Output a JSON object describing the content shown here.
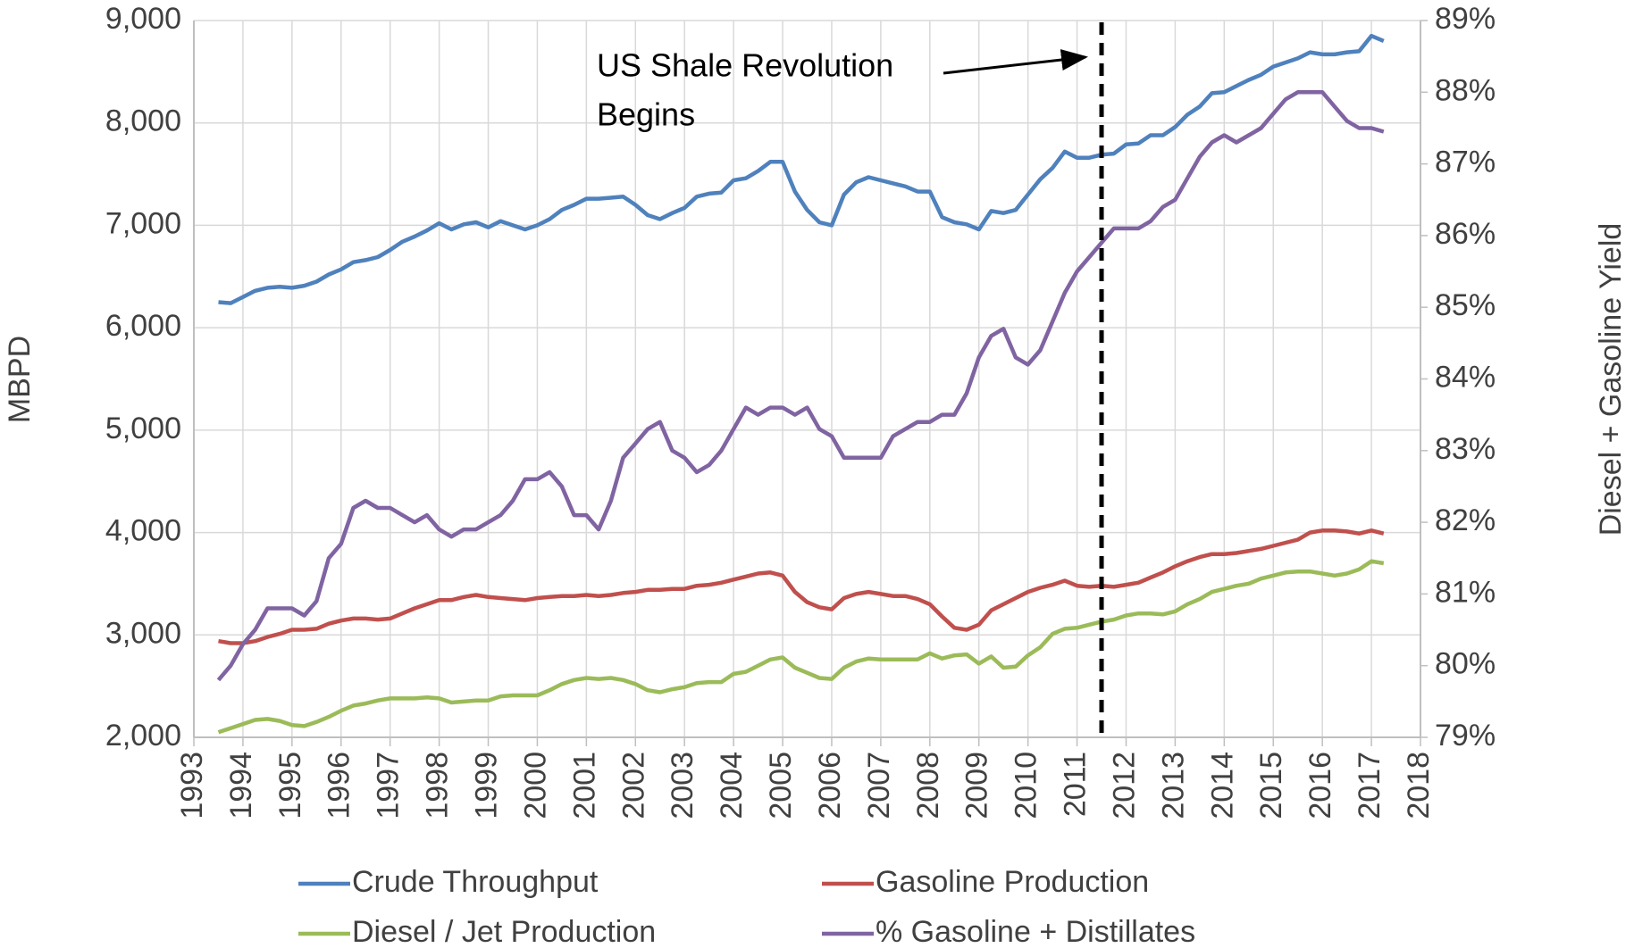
{
  "chart_data": {
    "type": "line",
    "y_label": "MBPD",
    "y2_label": "Diesel + Gasoline Yield",
    "annotation": {
      "lines": [
        "US Shale Revolution",
        "Begins"
      ],
      "x": 2011.5
    },
    "grid": true,
    "legend": "bottom",
    "xlim": [
      1993,
      2018
    ],
    "xticks": [
      1993,
      1994,
      1995,
      1996,
      1997,
      1998,
      1999,
      2000,
      2001,
      2002,
      2003,
      2004,
      2005,
      2006,
      2007,
      2008,
      2009,
      2010,
      2011,
      2012,
      2013,
      2014,
      2015,
      2016,
      2017,
      2018
    ],
    "ylim": [
      2000,
      9000
    ],
    "yticks": [
      {
        "value": 2000,
        "label": "2,000"
      },
      {
        "value": 3000,
        "label": "3,000"
      },
      {
        "value": 4000,
        "label": "4,000"
      },
      {
        "value": 5000,
        "label": "5,000"
      },
      {
        "value": 6000,
        "label": "6,000"
      },
      {
        "value": 7000,
        "label": "7,000"
      },
      {
        "value": 8000,
        "label": "8,000"
      },
      {
        "value": 9000,
        "label": "9,000"
      }
    ],
    "y2lim": [
      79,
      89
    ],
    "y2ticks": [
      {
        "value": 79,
        "label": "79%"
      },
      {
        "value": 80,
        "label": "80%"
      },
      {
        "value": 81,
        "label": "81%"
      },
      {
        "value": 82,
        "label": "82%"
      },
      {
        "value": 83,
        "label": "83%"
      },
      {
        "value": 84,
        "label": "84%"
      },
      {
        "value": 85,
        "label": "85%"
      },
      {
        "value": 86,
        "label": "86%"
      },
      {
        "value": 87,
        "label": "87%"
      },
      {
        "value": 88,
        "label": "88%"
      },
      {
        "value": 89,
        "label": "89%"
      }
    ],
    "x": [
      1993.5,
      1993.75,
      1994,
      1994.25,
      1994.5,
      1994.75,
      1995,
      1995.25,
      1995.5,
      1995.75,
      1996,
      1996.25,
      1996.5,
      1996.75,
      1997,
      1997.25,
      1997.5,
      1997.75,
      1998,
      1998.25,
      1998.5,
      1998.75,
      1999,
      1999.25,
      1999.5,
      1999.75,
      2000,
      2000.25,
      2000.5,
      2000.75,
      2001,
      2001.25,
      2001.5,
      2001.75,
      2002,
      2002.25,
      2002.5,
      2002.75,
      2003,
      2003.25,
      2003.5,
      2003.75,
      2004,
      2004.25,
      2004.5,
      2004.75,
      2005,
      2005.25,
      2005.5,
      2005.75,
      2006,
      2006.25,
      2006.5,
      2006.75,
      2007,
      2007.25,
      2007.5,
      2007.75,
      2008,
      2008.25,
      2008.5,
      2008.75,
      2009,
      2009.25,
      2009.5,
      2009.75,
      2010,
      2010.25,
      2010.5,
      2010.75,
      2011,
      2011.25,
      2011.5,
      2011.75,
      2012,
      2012.25,
      2012.5,
      2012.75,
      2013,
      2013.25,
      2013.5,
      2013.75,
      2014,
      2014.25,
      2014.5,
      2014.75,
      2015,
      2015.25,
      2015.5,
      2015.75,
      2016,
      2016.25,
      2016.5,
      2016.75,
      2017,
      2017.25
    ],
    "series": [
      {
        "name": "Crude Throughput",
        "color": "#4f81bd",
        "values": [
          6250,
          6240,
          6300,
          6360,
          6390,
          6400,
          6390,
          6410,
          6450,
          6520,
          6570,
          6640,
          6660,
          6690,
          6760,
          6840,
          6890,
          6950,
          7020,
          6960,
          7010,
          7030,
          6980,
          7040,
          7000,
          6960,
          7000,
          7060,
          7150,
          7200,
          7260,
          7260,
          7270,
          7280,
          7200,
          7100,
          7060,
          7120,
          7170,
          7280,
          7310,
          7320,
          7440,
          7460,
          7530,
          7620,
          7620,
          7330,
          7150,
          7030,
          7000,
          7300,
          7420,
          7470,
          7440,
          7410,
          7380,
          7330,
          7330,
          7080,
          7030,
          7010,
          6960,
          7140,
          7120,
          7150,
          7300,
          7450,
          7560,
          7720,
          7660,
          7660,
          7690,
          7700,
          7790,
          7800,
          7880,
          7880,
          7960,
          8080,
          8160,
          8290,
          8300,
          8360,
          8420,
          8470,
          8550,
          8590,
          8630,
          8690,
          8670,
          8670,
          8690,
          8700,
          8850,
          8800
        ]
      },
      {
        "name": "Gasoline Production",
        "color": "#c0504d",
        "values": [
          2940,
          2920,
          2920,
          2940,
          2980,
          3010,
          3050,
          3050,
          3060,
          3110,
          3140,
          3160,
          3160,
          3150,
          3160,
          3210,
          3260,
          3300,
          3340,
          3340,
          3370,
          3390,
          3370,
          3360,
          3350,
          3340,
          3360,
          3370,
          3380,
          3380,
          3390,
          3380,
          3390,
          3410,
          3420,
          3440,
          3440,
          3450,
          3450,
          3480,
          3490,
          3510,
          3540,
          3570,
          3600,
          3610,
          3580,
          3420,
          3320,
          3270,
          3250,
          3360,
          3400,
          3420,
          3400,
          3380,
          3380,
          3350,
          3300,
          3180,
          3070,
          3050,
          3100,
          3240,
          3300,
          3360,
          3420,
          3460,
          3490,
          3530,
          3480,
          3470,
          3480,
          3470,
          3490,
          3510,
          3560,
          3610,
          3670,
          3720,
          3760,
          3790,
          3790,
          3800,
          3820,
          3840,
          3870,
          3900,
          3930,
          4000,
          4020,
          4020,
          4010,
          3990,
          4020,
          3990
        ]
      },
      {
        "name": "Diesel / Jet Production",
        "color": "#9bbb59",
        "values": [
          2050,
          2090,
          2130,
          2170,
          2180,
          2160,
          2120,
          2110,
          2150,
          2200,
          2260,
          2310,
          2330,
          2360,
          2380,
          2380,
          2380,
          2390,
          2380,
          2340,
          2350,
          2360,
          2360,
          2400,
          2410,
          2410,
          2410,
          2460,
          2520,
          2560,
          2580,
          2570,
          2580,
          2560,
          2520,
          2460,
          2440,
          2470,
          2490,
          2530,
          2540,
          2540,
          2620,
          2640,
          2700,
          2760,
          2780,
          2680,
          2630,
          2580,
          2570,
          2680,
          2740,
          2770,
          2760,
          2760,
          2760,
          2760,
          2820,
          2770,
          2800,
          2810,
          2720,
          2790,
          2680,
          2690,
          2800,
          2880,
          3010,
          3060,
          3070,
          3100,
          3130,
          3150,
          3190,
          3210,
          3210,
          3200,
          3230,
          3300,
          3350,
          3420,
          3450,
          3480,
          3500,
          3550,
          3580,
          3610,
          3620,
          3620,
          3600,
          3580,
          3600,
          3640,
          3720,
          3700
        ]
      },
      {
        "name": "% Gasoline + Distillates",
        "color": "#8064a2",
        "axis": "y2",
        "values": [
          79.8,
          80.0,
          80.3,
          80.5,
          80.8,
          80.8,
          80.8,
          80.7,
          80.9,
          81.5,
          81.7,
          82.2,
          82.3,
          82.2,
          82.2,
          82.1,
          82.0,
          82.1,
          81.9,
          81.8,
          81.9,
          81.9,
          82.0,
          82.1,
          82.3,
          82.6,
          82.6,
          82.7,
          82.5,
          82.1,
          82.1,
          81.9,
          82.3,
          82.9,
          83.1,
          83.3,
          83.4,
          83.0,
          82.9,
          82.7,
          82.8,
          83.0,
          83.3,
          83.6,
          83.5,
          83.6,
          83.6,
          83.5,
          83.6,
          83.3,
          83.2,
          82.9,
          82.9,
          82.9,
          82.9,
          83.2,
          83.3,
          83.4,
          83.4,
          83.5,
          83.5,
          83.8,
          84.3,
          84.6,
          84.7,
          84.3,
          84.2,
          84.4,
          84.8,
          85.2,
          85.5,
          85.7,
          85.9,
          86.1,
          86.1,
          86.1,
          86.2,
          86.4,
          86.5,
          86.8,
          87.1,
          87.3,
          87.4,
          87.3,
          87.4,
          87.5,
          87.7,
          87.9,
          88.0,
          88.0,
          88.0,
          87.8,
          87.6,
          87.5,
          87.5,
          87.45
        ]
      }
    ]
  }
}
